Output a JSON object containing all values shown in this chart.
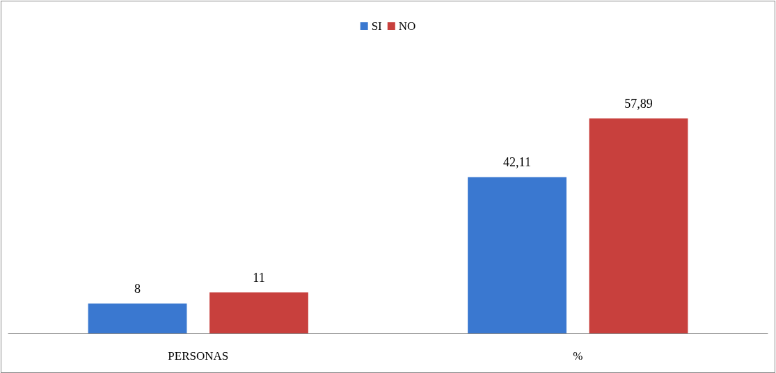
{
  "chart_data": {
    "type": "bar",
    "categories": [
      "PERSONAS",
      "%"
    ],
    "series": [
      {
        "name": "SI",
        "color": "#3a78d0",
        "values": [
          8,
          42.11
        ],
        "value_labels": [
          "8",
          "42,11"
        ]
      },
      {
        "name": "NO",
        "color": "#c8403d",
        "values": [
          11,
          57.89
        ],
        "value_labels": [
          "11",
          "57,89"
        ]
      }
    ],
    "legend": "top"
  }
}
